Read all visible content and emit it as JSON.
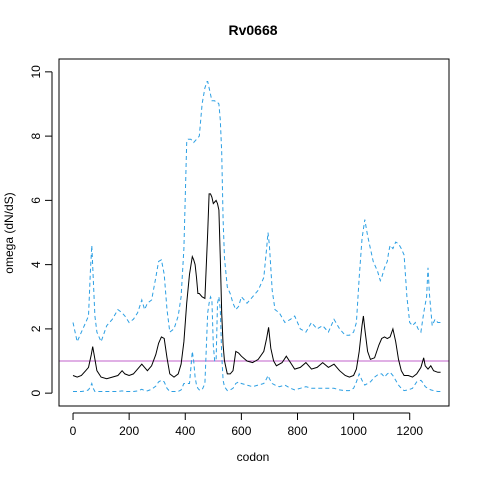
{
  "chart_data": {
    "type": "line",
    "title": "Rv0668",
    "xlabel": "codon",
    "ylabel": "omega (dN/dS)",
    "xlim": [
      -50,
      1340
    ],
    "ylim": [
      -0.4,
      10.4
    ],
    "xticks": [
      0,
      200,
      400,
      600,
      800,
      1000,
      1200
    ],
    "yticks": [
      0,
      2,
      4,
      6,
      8,
      10
    ],
    "reference_line": {
      "y": 1,
      "color": "#c061cb"
    },
    "colors": {
      "estimate": "#000000",
      "bounds": "#2c9fe3"
    },
    "series": [
      {
        "role": "estimate",
        "style": "solid",
        "x": [
          0,
          15,
          30,
          45,
          55,
          65,
          70,
          75,
          85,
          100,
          120,
          140,
          160,
          175,
          185,
          200,
          215,
          230,
          245,
          255,
          265,
          280,
          295,
          305,
          315,
          325,
          335,
          345,
          360,
          375,
          385,
          395,
          405,
          415,
          425,
          430,
          435,
          440,
          445,
          450,
          460,
          470,
          480,
          485,
          490,
          495,
          500,
          505,
          510,
          515,
          520,
          525,
          530,
          535,
          540,
          550,
          560,
          570,
          580,
          590,
          600,
          620,
          640,
          660,
          680,
          690,
          697,
          705,
          715,
          725,
          745,
          760,
          775,
          790,
          810,
          830,
          850,
          870,
          890,
          910,
          930,
          950,
          970,
          985,
          1000,
          1010,
          1020,
          1030,
          1035,
          1040,
          1050,
          1060,
          1075,
          1090,
          1100,
          1110,
          1120,
          1130,
          1140,
          1150,
          1160,
          1170,
          1180,
          1195,
          1210,
          1225,
          1240,
          1250,
          1255,
          1265,
          1275,
          1285,
          1300,
          1310
        ],
        "y": [
          0.55,
          0.5,
          0.55,
          0.7,
          0.8,
          1.2,
          1.45,
          1.2,
          0.7,
          0.5,
          0.45,
          0.5,
          0.55,
          0.7,
          0.6,
          0.55,
          0.6,
          0.75,
          0.9,
          0.8,
          0.7,
          0.85,
          1.2,
          1.55,
          1.75,
          1.7,
          1.1,
          0.6,
          0.5,
          0.6,
          0.9,
          1.6,
          2.8,
          3.7,
          4.25,
          4.15,
          4.0,
          3.6,
          3.1,
          3.1,
          3.0,
          2.95,
          5.0,
          6.2,
          6.2,
          6.1,
          5.9,
          5.95,
          6.0,
          5.9,
          5.7,
          4.2,
          2.5,
          1.5,
          1.0,
          0.6,
          0.6,
          0.7,
          1.3,
          1.25,
          1.15,
          1.0,
          0.95,
          1.05,
          1.3,
          1.7,
          2.05,
          1.4,
          1.0,
          0.85,
          0.95,
          1.15,
          0.95,
          0.75,
          0.8,
          0.95,
          0.75,
          0.8,
          0.95,
          0.8,
          0.9,
          0.7,
          0.55,
          0.5,
          0.55,
          0.75,
          1.3,
          2.1,
          2.4,
          2.0,
          1.3,
          1.05,
          1.1,
          1.5,
          1.7,
          1.75,
          1.7,
          1.75,
          2.0,
          1.6,
          1.05,
          0.7,
          0.55,
          0.55,
          0.5,
          0.6,
          0.8,
          1.1,
          0.85,
          0.75,
          0.85,
          0.7,
          0.65,
          0.65
        ]
      },
      {
        "role": "upper-bound",
        "style": "dashed",
        "x": [
          0,
          15,
          30,
          45,
          55,
          62,
          67,
          72,
          78,
          85,
          100,
          120,
          140,
          160,
          175,
          185,
          200,
          215,
          230,
          245,
          255,
          265,
          280,
          295,
          305,
          315,
          325,
          335,
          345,
          360,
          375,
          385,
          395,
          405,
          410,
          412,
          420,
          430,
          440,
          450,
          460,
          470,
          478,
          480,
          490,
          495,
          500,
          505,
          510,
          515,
          520,
          525,
          530,
          535,
          540,
          550,
          560,
          570,
          580,
          590,
          600,
          620,
          640,
          660,
          680,
          690,
          695,
          700,
          710,
          720,
          735,
          755,
          775,
          790,
          810,
          830,
          850,
          870,
          890,
          910,
          930,
          950,
          970,
          985,
          1000,
          1010,
          1020,
          1030,
          1040,
          1050,
          1060,
          1070,
          1085,
          1095,
          1100,
          1110,
          1120,
          1125,
          1130,
          1140,
          1150,
          1160,
          1170,
          1180,
          1190,
          1200,
          1210,
          1220,
          1230,
          1240,
          1250,
          1260,
          1265,
          1270,
          1275,
          1280,
          1290,
          1300,
          1310
        ],
        "y": [
          2.2,
          1.6,
          1.9,
          2.2,
          2.4,
          3.8,
          4.6,
          3.6,
          2.4,
          1.9,
          1.6,
          2.1,
          2.3,
          2.6,
          2.5,
          2.4,
          2.2,
          2.3,
          2.5,
          2.9,
          2.6,
          2.8,
          2.9,
          3.6,
          4.1,
          4.15,
          3.7,
          2.6,
          1.9,
          2.0,
          2.4,
          3.0,
          4.5,
          7.8,
          7.9,
          7.9,
          7.9,
          7.8,
          7.9,
          8.0,
          9.0,
          9.5,
          9.7,
          9.7,
          9.3,
          9.1,
          9.1,
          9.1,
          9.05,
          9.05,
          9.0,
          8.5,
          7.5,
          5.4,
          4.2,
          3.3,
          3.1,
          2.8,
          2.6,
          2.7,
          3.0,
          2.8,
          3.0,
          3.2,
          3.6,
          4.5,
          5.0,
          4.6,
          3.2,
          2.6,
          2.5,
          2.2,
          2.3,
          2.4,
          2.0,
          1.9,
          2.2,
          2.0,
          2.1,
          1.9,
          2.3,
          2.0,
          1.8,
          1.8,
          1.9,
          2.2,
          3.6,
          4.8,
          5.4,
          4.9,
          4.5,
          4.1,
          3.8,
          3.5,
          3.6,
          3.9,
          4.1,
          4.4,
          4.6,
          4.5,
          4.7,
          4.65,
          4.5,
          4.3,
          3.0,
          2.2,
          2.1,
          2.2,
          2.0,
          1.9,
          2.5,
          3.0,
          3.9,
          3.1,
          2.6,
          2.1,
          2.3,
          2.2,
          2.2
        ]
      },
      {
        "role": "lower-bound",
        "style": "dashed",
        "x": [
          0,
          15,
          30,
          45,
          55,
          62,
          67,
          72,
          78,
          85,
          100,
          120,
          140,
          160,
          175,
          185,
          200,
          215,
          230,
          245,
          255,
          265,
          280,
          295,
          305,
          315,
          325,
          335,
          345,
          360,
          375,
          385,
          395,
          405,
          415,
          425,
          430,
          435,
          440,
          445,
          450,
          460,
          470,
          480,
          485,
          490,
          495,
          500,
          505,
          510,
          515,
          520,
          525,
          530,
          535,
          540,
          550,
          560,
          570,
          580,
          590,
          600,
          620,
          640,
          660,
          680,
          690,
          695,
          700,
          710,
          720,
          735,
          755,
          775,
          790,
          810,
          830,
          850,
          870,
          890,
          910,
          930,
          950,
          970,
          985,
          1000,
          1010,
          1020,
          1030,
          1040,
          1050,
          1060,
          1075,
          1090,
          1100,
          1110,
          1120,
          1130,
          1140,
          1150,
          1160,
          1170,
          1180,
          1195,
          1210,
          1225,
          1240,
          1250,
          1255,
          1265,
          1275,
          1285,
          1300,
          1310
        ],
        "y": [
          0.05,
          0.05,
          0.05,
          0.07,
          0.1,
          0.2,
          0.3,
          0.15,
          0.05,
          0.05,
          0.05,
          0.05,
          0.05,
          0.05,
          0.07,
          0.05,
          0.05,
          0.05,
          0.07,
          0.12,
          0.08,
          0.07,
          0.12,
          0.22,
          0.35,
          0.4,
          0.35,
          0.15,
          0.05,
          0.05,
          0.05,
          0.1,
          0.3,
          0.3,
          0.3,
          1.3,
          1.0,
          0.5,
          0.25,
          0.15,
          0.1,
          0.1,
          0.3,
          2.5,
          2.8,
          3.0,
          2.9,
          1.5,
          1.0,
          1.0,
          2.8,
          3.0,
          2.6,
          1.2,
          0.4,
          0.2,
          0.08,
          0.1,
          0.15,
          0.3,
          0.35,
          0.3,
          0.25,
          0.2,
          0.25,
          0.3,
          0.45,
          0.55,
          0.45,
          0.3,
          0.25,
          0.2,
          0.25,
          0.15,
          0.1,
          0.15,
          0.2,
          0.15,
          0.15,
          0.15,
          0.15,
          0.15,
          0.1,
          0.08,
          0.08,
          0.15,
          0.35,
          0.6,
          0.4,
          0.25,
          0.3,
          0.35,
          0.5,
          0.6,
          0.6,
          0.5,
          0.6,
          0.65,
          0.55,
          0.4,
          0.25,
          0.15,
          0.08,
          0.1,
          0.15,
          0.35,
          0.4,
          0.3,
          0.2,
          0.15,
          0.1,
          0.08,
          0.05,
          0.05
        ]
      }
    ]
  }
}
